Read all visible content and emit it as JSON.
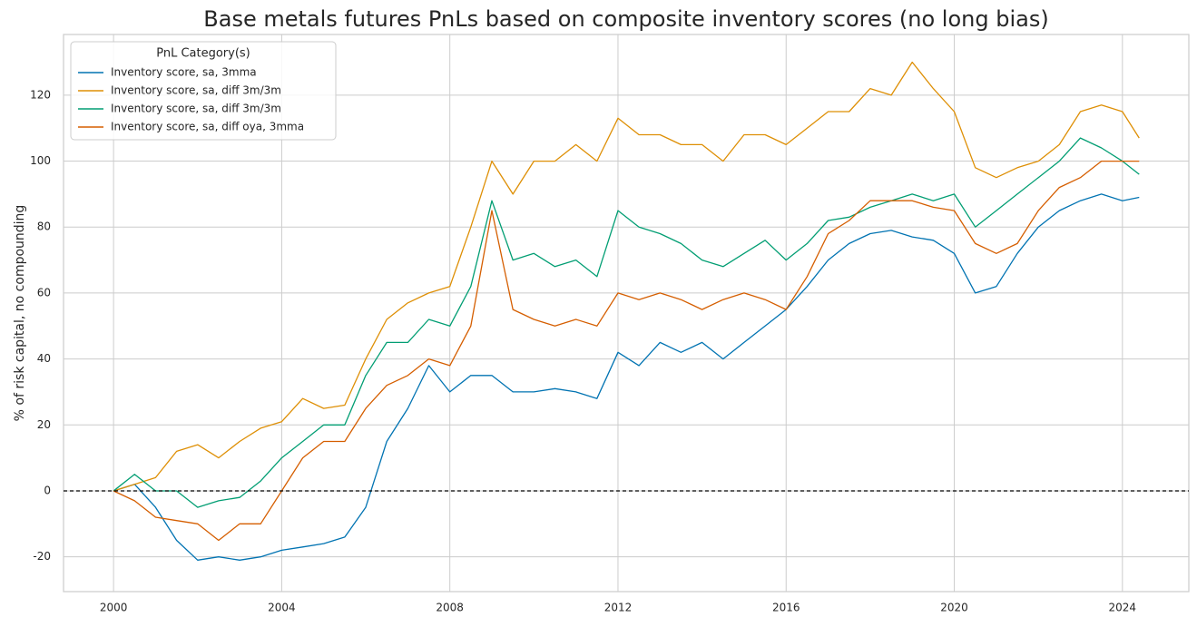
{
  "chart_data": {
    "type": "line",
    "title": "Base metals futures PnLs based on composite inventory scores (no long bias)",
    "y_label": "% of risk capital, no compounding",
    "legend_title": "PnL Category(s)",
    "legend_position": "upper left",
    "grid": true,
    "reference_line": 0,
    "x": [
      2000,
      2000.5,
      2001,
      2001.5,
      2002,
      2002.5,
      2003,
      2003.5,
      2004,
      2004.5,
      2005,
      2005.5,
      2006,
      2006.5,
      2007,
      2007.5,
      2008,
      2008.5,
      2009,
      2009.5,
      2010,
      2010.5,
      2011,
      2011.5,
      2012,
      2012.5,
      2013,
      2013.5,
      2014,
      2014.5,
      2015,
      2015.5,
      2016,
      2016.5,
      2017,
      2017.5,
      2018,
      2018.5,
      2019,
      2019.5,
      2020,
      2020.5,
      2021,
      2021.5,
      2022,
      2022.5,
      2023,
      2023.5,
      2024,
      2024.4
    ],
    "series": [
      {
        "name": "Inventory score, sa, 3mma",
        "color": "#0173b2",
        "values": [
          0,
          2,
          -5,
          -15,
          -21,
          -20,
          -21,
          -20,
          -18,
          -17,
          -16,
          -14,
          -5,
          15,
          25,
          38,
          30,
          35,
          35,
          30,
          30,
          31,
          30,
          28,
          42,
          38,
          45,
          42,
          45,
          40,
          45,
          50,
          55,
          62,
          70,
          75,
          78,
          79,
          77,
          76,
          72,
          60,
          62,
          72,
          80,
          85,
          88,
          90,
          88,
          89
        ]
      },
      {
        "name": "Inventory score, sa, diff 3m/3m",
        "color": "#de8f05",
        "values": [
          0,
          2,
          4,
          12,
          14,
          10,
          15,
          19,
          21,
          28,
          25,
          26,
          40,
          52,
          57,
          60,
          62,
          80,
          100,
          90,
          100,
          100,
          105,
          100,
          113,
          108,
          108,
          105,
          105,
          100,
          108,
          108,
          105,
          110,
          115,
          115,
          122,
          120,
          130,
          122,
          115,
          98,
          95,
          98,
          100,
          105,
          115,
          117,
          115,
          107
        ]
      },
      {
        "name": "Inventory score, sa, diff 3m/3m",
        "color": "#029e73",
        "values": [
          0,
          5,
          0,
          0,
          -5,
          -3,
          -2,
          3,
          10,
          15,
          20,
          20,
          35,
          45,
          45,
          52,
          50,
          62,
          88,
          70,
          72,
          68,
          70,
          65,
          85,
          80,
          78,
          75,
          70,
          68,
          72,
          76,
          70,
          75,
          82,
          83,
          86,
          88,
          90,
          88,
          90,
          80,
          85,
          90,
          95,
          100,
          107,
          104,
          100,
          96
        ]
      },
      {
        "name": "Inventory score, sa, diff oya, 3mma",
        "color": "#d55e00",
        "values": [
          0,
          -3,
          -8,
          -9,
          -10,
          -15,
          -10,
          -10,
          0,
          10,
          15,
          15,
          25,
          32,
          35,
          40,
          38,
          50,
          85,
          55,
          52,
          50,
          52,
          50,
          60,
          58,
          60,
          58,
          55,
          58,
          60,
          58,
          55,
          65,
          78,
          82,
          88,
          88,
          88,
          86,
          85,
          75,
          72,
          75,
          85,
          92,
          95,
          100,
          100,
          100
        ]
      }
    ],
    "xlim": [
      1998.81,
      2025.58
    ],
    "xticks": [
      2000,
      2004,
      2008,
      2012,
      2016,
      2020,
      2024
    ],
    "ylim": [
      -30.55,
      138.4
    ],
    "yticks": [
      -20,
      0,
      20,
      40,
      60,
      80,
      100,
      120
    ]
  }
}
